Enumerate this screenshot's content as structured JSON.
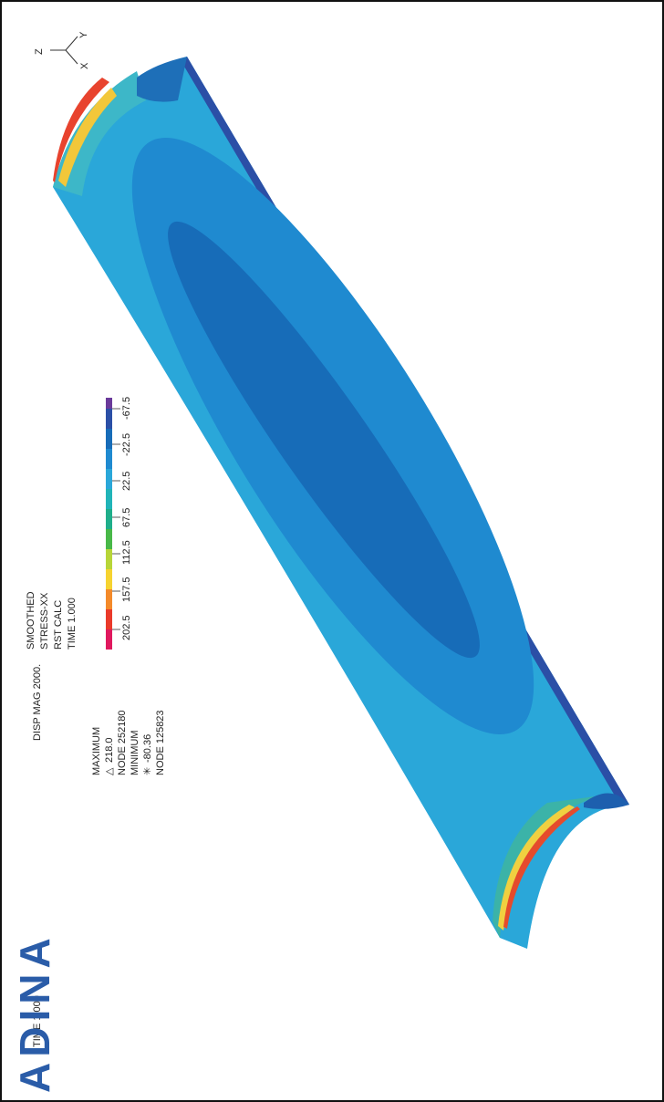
{
  "header": {
    "lines": [
      "SMOOTHED",
      "STRESS-XX",
      "RST CALC",
      "TIME 1.000"
    ]
  },
  "legend": {
    "ticks": [
      "202.5",
      "157.5",
      "112.5",
      "67.5",
      "22.5",
      "-22.5",
      "-67.5"
    ]
  },
  "footer": {
    "time": "TIME 1.000",
    "disp": "DISP MAG 2000."
  },
  "extremes": {
    "max_title": "MAXIMUM",
    "max_symbol": "△",
    "max_value": "218.0",
    "max_node": "NODE 252180",
    "min_title": "MINIMUM",
    "min_symbol": "✳",
    "min_value": "-80.36",
    "min_node": "NODE 125823"
  },
  "triad": {
    "z": "Z",
    "y": "Y",
    "x": "X"
  },
  "logo": "ADINA"
}
